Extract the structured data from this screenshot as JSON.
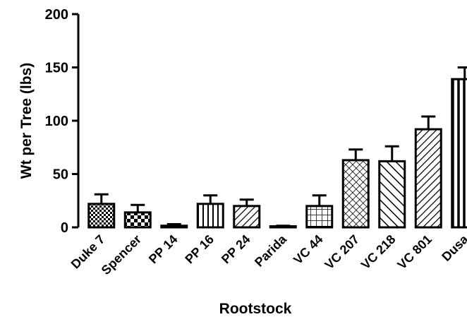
{
  "chart_data": {
    "type": "bar",
    "title": "",
    "xlabel": "Rootstock",
    "ylabel": "Wt per Tree (lbs)",
    "ylim": [
      0,
      200
    ],
    "yticks": [
      0,
      50,
      100,
      150,
      200
    ],
    "grid": false,
    "legend": "none",
    "categories": [
      "Duke 7",
      "Spencer",
      "PP 14",
      "PP 16",
      "PP 24",
      "Parida",
      "VC 44",
      "VC 207",
      "VC 218",
      "VC 801",
      "Dusa"
    ],
    "values": [
      22,
      14,
      1.5,
      22,
      20,
      0.5,
      20,
      63,
      62,
      92,
      139
    ],
    "error": [
      9,
      7,
      1.5,
      8,
      6,
      1,
      10,
      10,
      14,
      12,
      11
    ],
    "patterns": [
      "checker",
      "checker-coarse",
      "hatch-right",
      "vertical",
      "hatch-right",
      "hatch-right",
      "grid",
      "crosshatch",
      "hatch-left",
      "hatch-right",
      "vertical-thick"
    ],
    "colors": {
      "bar_fill": "#ffffff",
      "stroke": "#000000"
    }
  }
}
